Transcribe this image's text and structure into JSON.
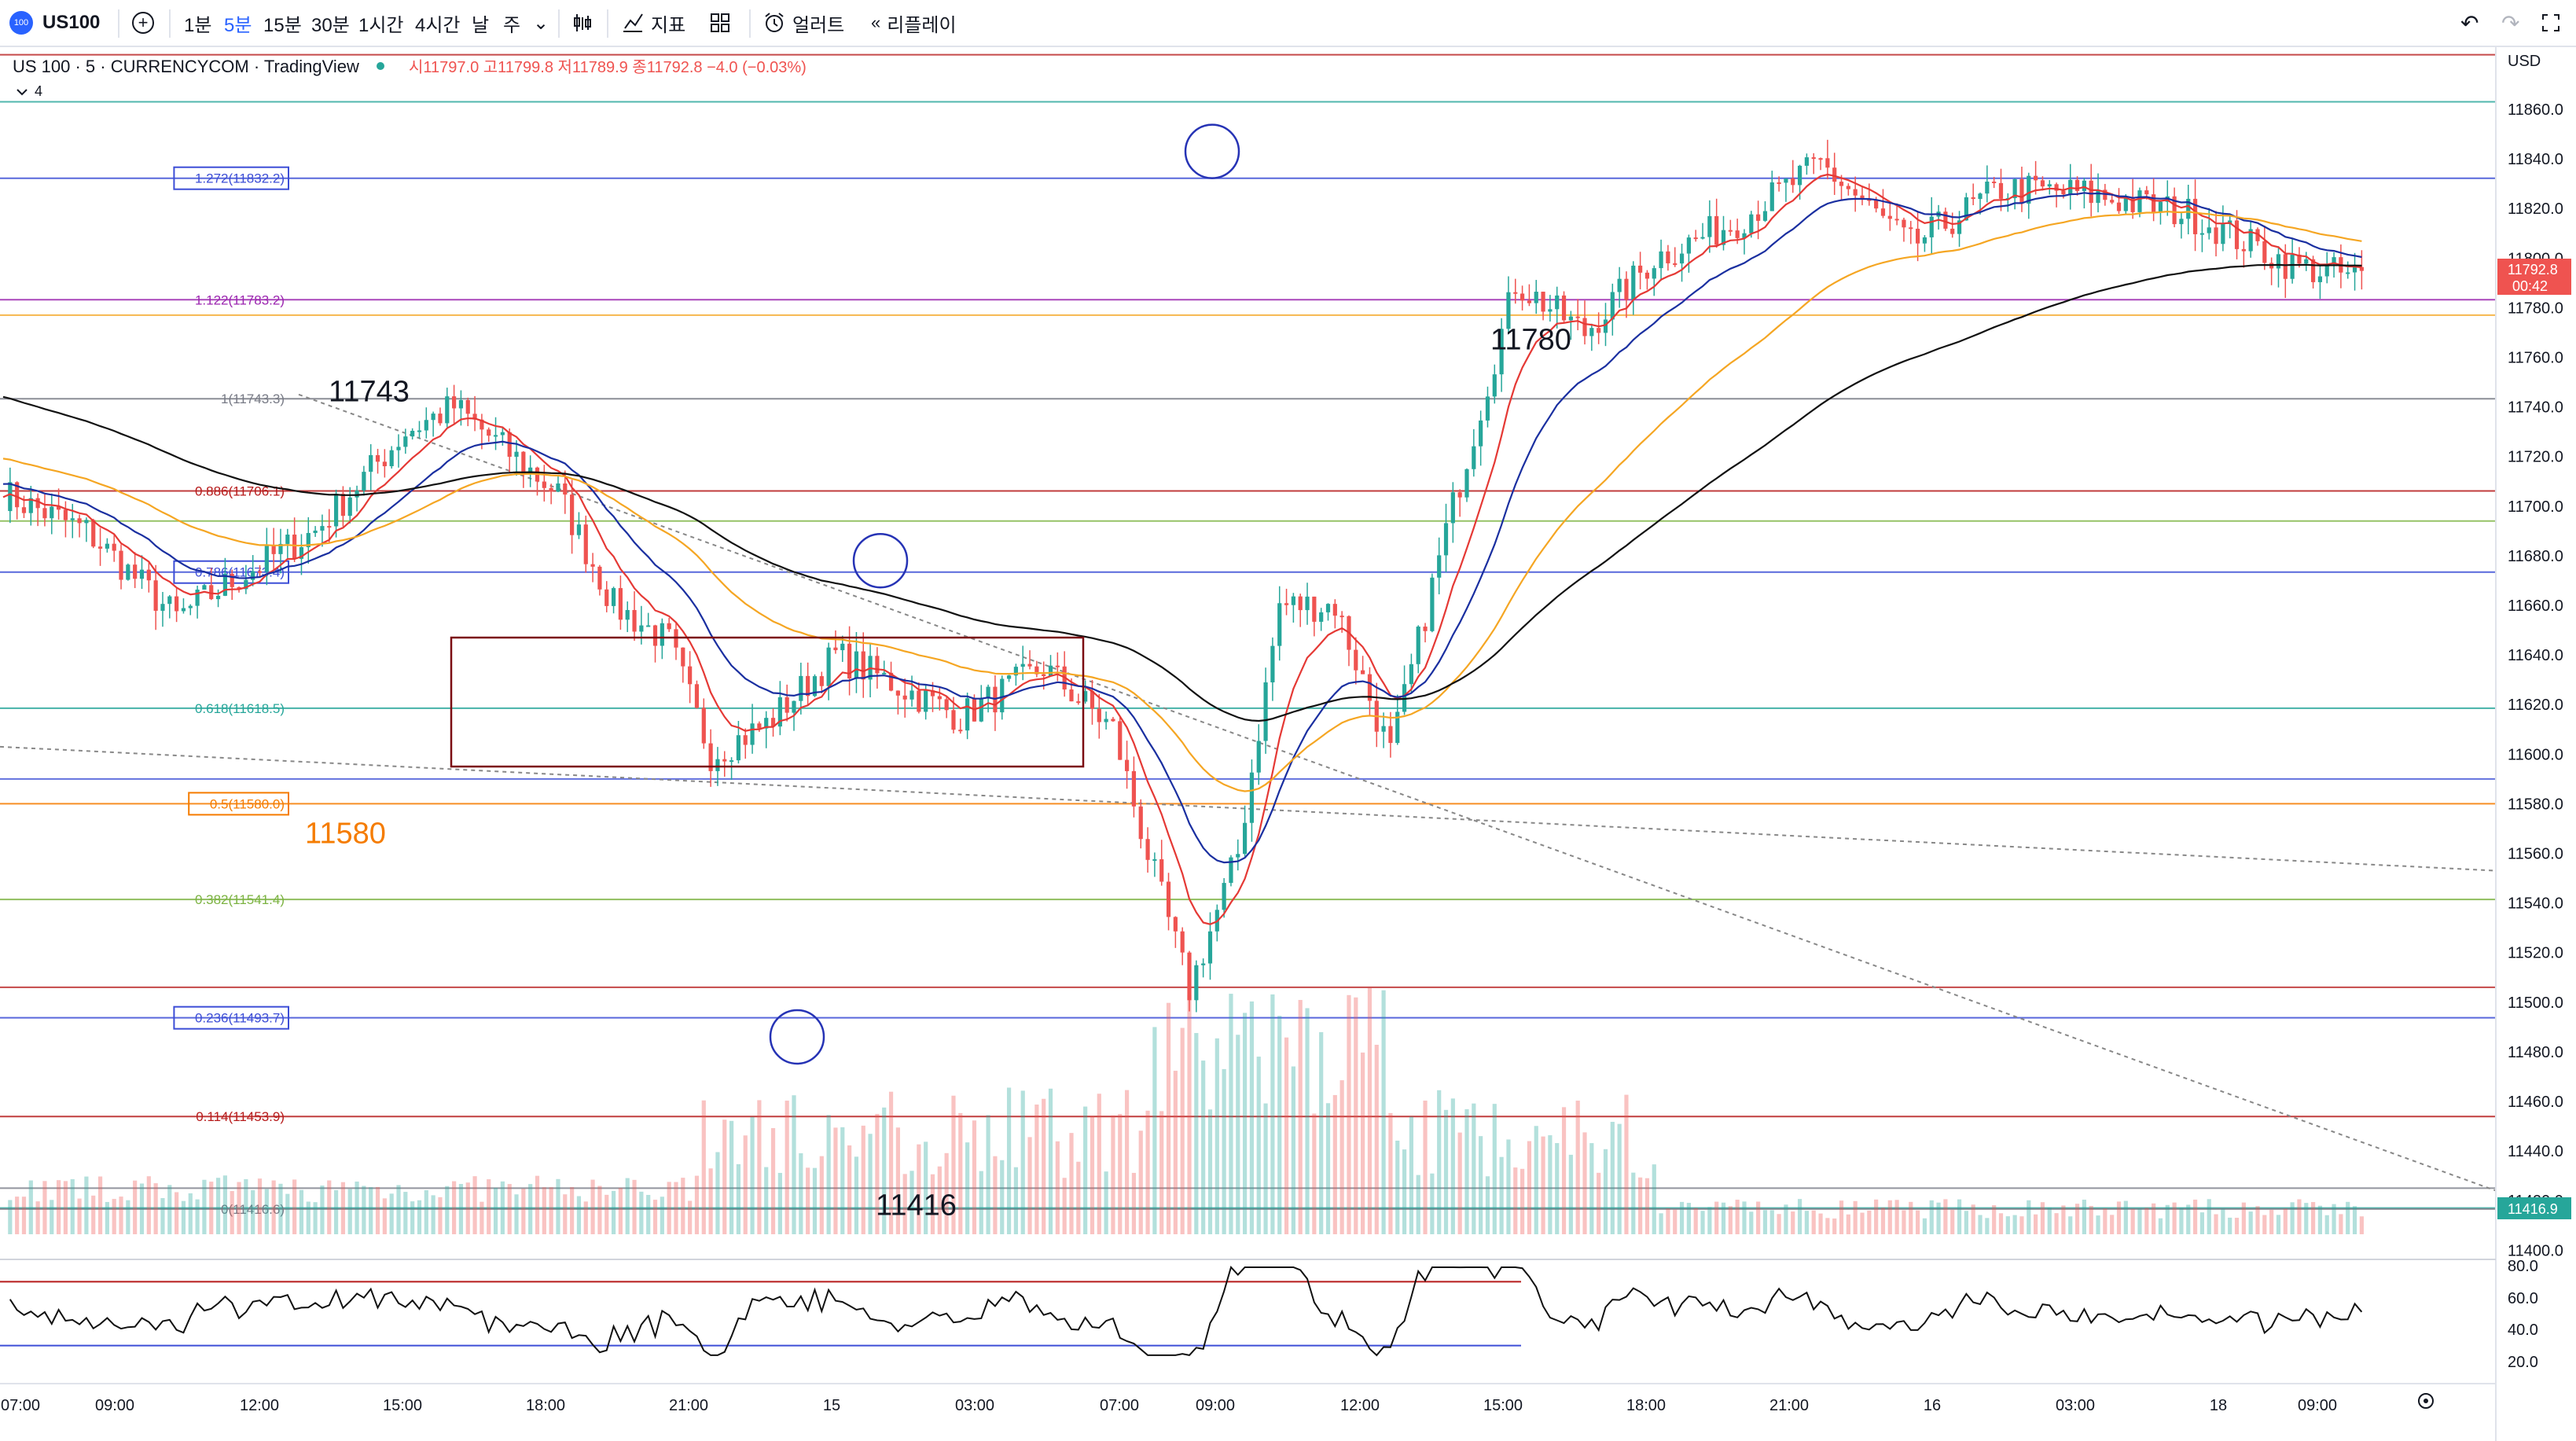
{
  "toolbar": {
    "symbol_badge": "100",
    "symbol": "US100",
    "intervals": [
      "1분",
      "5분",
      "15분",
      "30분",
      "1시간",
      "4시간",
      "날",
      "주"
    ],
    "active_interval": "5분",
    "indicators_label": "지표",
    "alerts_label": "얼러트",
    "replay_label": "리플레이"
  },
  "legend": {
    "symbol_line": "US 100 · 5 · CURRENCYCOM · TradingView",
    "ohlc": "시11797.0 고11799.8 저11789.9 종11792.8 −4.0 (−0.03%)",
    "collapse_count": "4"
  },
  "price_axis": {
    "currency": "USD",
    "ticks": [
      "11860.0",
      "11840.0",
      "11820.0",
      "11800.0",
      "11780.0",
      "11760.0",
      "11740.0",
      "11720.0",
      "11700.0",
      "11680.0",
      "11660.0",
      "11640.0",
      "11620.0",
      "11600.0",
      "11580.0",
      "11560.0",
      "11540.0",
      "11520.0",
      "11500.0",
      "11480.0",
      "11460.0",
      "11440.0",
      "11420.0",
      "11400.0"
    ],
    "last_price": "11792.8",
    "countdown": "00:42",
    "marker_price": "11416.9"
  },
  "time_axis": {
    "ticks": [
      "07:00",
      "09:00",
      "12:00",
      "15:00",
      "18:00",
      "21:00",
      "15",
      "03:00",
      "07:00",
      "09:00",
      "12:00",
      "15:00",
      "18:00",
      "21:00",
      "16",
      "03:00",
      "18",
      "09:00"
    ]
  },
  "rsi_axis": {
    "ticks": [
      "80.0",
      "60.0",
      "40.0",
      "20.0"
    ]
  },
  "fib_levels": [
    {
      "label": "1.272(11832.2)",
      "color": "#3d4ed6",
      "boxed": true
    },
    {
      "label": "1.122(11783.2)",
      "color": "#9c27b0",
      "boxed": false
    },
    {
      "label": "1(11743.3)",
      "color": "#787b86",
      "boxed": false
    },
    {
      "label": "0.886(11706.1)",
      "color": "#b71c1c",
      "boxed": false
    },
    {
      "label": "0.786(11673.4)",
      "color": "#3d4ed6",
      "boxed": true
    },
    {
      "label": "0.618(11618.5)",
      "color": "#26a69a",
      "boxed": false
    },
    {
      "label": "0.5(11580.0)",
      "color": "#f57c00",
      "boxed": true
    },
    {
      "label": "0.382(11541.4)",
      "color": "#7cb342",
      "boxed": false
    },
    {
      "label": "0.236(11493.7)",
      "color": "#3d4ed6",
      "boxed": true
    },
    {
      "label": "0.114(11453.9)",
      "color": "#b71c1c",
      "boxed": false
    },
    {
      "label": "0(11416.6)",
      "color": "#787b86",
      "boxed": false
    }
  ],
  "annotations": {
    "high_label": "11743",
    "ema_label": "11780",
    "fib_mid_label": "11580",
    "low_label": "11416"
  },
  "colors": {
    "accent": "#2962ff",
    "up": "#26a69a",
    "down": "#ef5350",
    "ema_red": "#e53935",
    "ema_blue": "#1a2fa0",
    "ema_orange": "#f5a623",
    "ema_black": "#111111",
    "zone_box": "#7b0d12",
    "circle": "#2633b5",
    "rsi_line": "#111111",
    "rsi_upper": "#b71c1c",
    "rsi_lower": "#3d4ed6"
  }
}
